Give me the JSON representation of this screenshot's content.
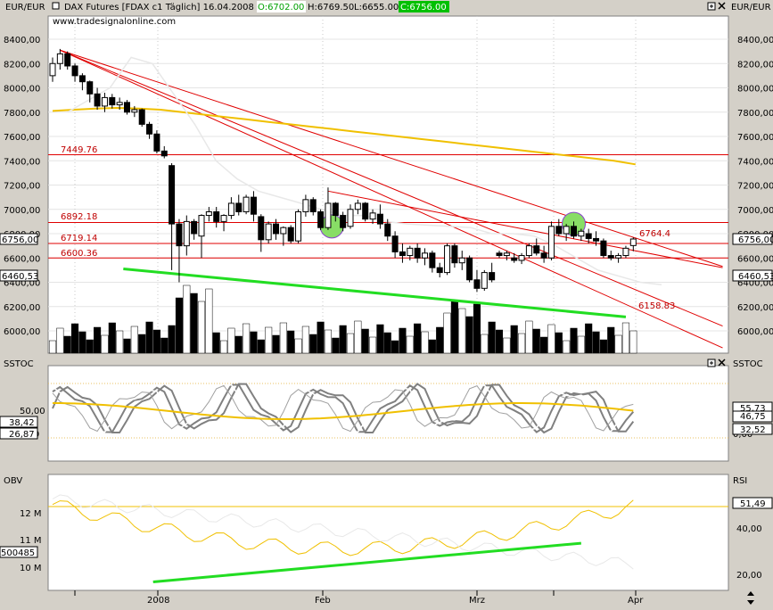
{
  "header": {
    "symbol_left": "EUR/EUR",
    "symbol_right": "EUR/EUR",
    "title": "DAX Futures [FDAX c1  Täglich] 16.04.2008 -",
    "open": "O:6702.00",
    "high": "H:6769.50",
    "low": "L:6655.00",
    "close": "C:6756.00",
    "source": "www.tradesignalonline.com"
  },
  "colors": {
    "background": "#ffffff",
    "frame": "#d4d0c8",
    "trendline": "#e00000",
    "ma_long": "#f0c000",
    "support_line": "#22dd22",
    "volume": "#000000"
  },
  "icons": [
    "square-icon",
    "plus-box-icon",
    "close-icon",
    "up-down-arrow-icon"
  ],
  "main_panel": {
    "y_ticks": [
      "8400,00",
      "8200,00",
      "8000,00",
      "7800,00",
      "7600,00",
      "7400,00",
      "7200,00",
      "7000,00",
      "6800,00",
      "6600,00",
      "6400,00",
      "6200,00",
      "6000,00"
    ],
    "price_badge_left": "6756,00",
    "price_badge_right": "6756,00",
    "volume_badge_left": "6460,53",
    "volume_badge_right": "6460,53",
    "levels": [
      {
        "label": "7449.76",
        "value": 7449.76
      },
      {
        "label": "6892.18",
        "value": 6892.18
      },
      {
        "label": "6719.14",
        "value": 6719.14
      },
      {
        "label": "6600.36",
        "value": 6600.36
      }
    ],
    "annotations": [
      {
        "label": "6764.4",
        "value": 6764.4
      },
      {
        "label": "6158.83",
        "value": 6158.83
      }
    ]
  },
  "sstoc_panel": {
    "title_left": "SSTOC",
    "title_right": "SSTOC",
    "y_ticks": [
      "50,00",
      "0,00"
    ],
    "left_badges": [
      "38,42",
      "26,87"
    ],
    "right_badges": [
      "55,73",
      "46,75",
      "32,52"
    ]
  },
  "obv_panel": {
    "title_left": "OBV",
    "title_right": "RSI",
    "left_ticks": [
      "12 M",
      "11 M",
      "10 M"
    ],
    "left_badge": "500485",
    "right_ticks": [
      "40,00",
      "20,00"
    ],
    "right_badge": "51,49"
  },
  "x_axis": {
    "labels": [
      "2008",
      "Feb",
      "Mrz",
      "Apr"
    ]
  },
  "chart_data": {
    "type": "candlestick",
    "title": "DAX Futures [FDAX c1  Täglich] 16.04.2008",
    "ylabel": "EUR/EUR",
    "ylim": [
      5750,
      8550
    ],
    "x_labels": [
      "2008",
      "Feb",
      "Mrz",
      "Apr"
    ],
    "ohlc": [
      [
        8100,
        8250,
        8050,
        8200
      ],
      [
        8200,
        8320,
        8150,
        8280
      ],
      [
        8280,
        8300,
        8150,
        8180
      ],
      [
        8180,
        8200,
        8050,
        8100
      ],
      [
        8100,
        8120,
        7980,
        8050
      ],
      [
        8050,
        8060,
        7880,
        7950
      ],
      [
        7950,
        8000,
        7820,
        7850
      ],
      [
        7850,
        7960,
        7800,
        7920
      ],
      [
        7920,
        7950,
        7830,
        7860
      ],
      [
        7860,
        7920,
        7820,
        7880
      ],
      [
        7880,
        7900,
        7780,
        7800
      ],
      [
        7800,
        7850,
        7760,
        7820
      ],
      [
        7820,
        7830,
        7680,
        7700
      ],
      [
        7700,
        7720,
        7580,
        7620
      ],
      [
        7620,
        7650,
        7460,
        7480
      ],
      [
        7480,
        7520,
        7420,
        7440
      ],
      [
        7360,
        7380,
        6500,
        6880
      ],
      [
        6880,
        6920,
        6400,
        6700
      ],
      [
        6700,
        6950,
        6620,
        6900
      ],
      [
        6900,
        6920,
        6750,
        6800
      ],
      [
        6780,
        6960,
        6600,
        6950
      ],
      [
        6950,
        7020,
        6900,
        6980
      ],
      [
        6980,
        7020,
        6850,
        6900
      ],
      [
        6900,
        6960,
        6820,
        6950
      ],
      [
        6950,
        7100,
        6920,
        7050
      ],
      [
        7050,
        7120,
        6950,
        6980
      ],
      [
        6980,
        7120,
        6960,
        7100
      ],
      [
        7100,
        7150,
        6900,
        6960
      ],
      [
        6940,
        6960,
        6650,
        6750
      ],
      [
        6750,
        6900,
        6720,
        6880
      ],
      [
        6880,
        6920,
        6750,
        6800
      ],
      [
        6800,
        6860,
        6700,
        6850
      ],
      [
        6850,
        6870,
        6720,
        6740
      ],
      [
        6740,
        7000,
        6720,
        6980
      ],
      [
        6980,
        7120,
        6940,
        7080
      ],
      [
        7080,
        7100,
        6950,
        6980
      ],
      [
        6980,
        7000,
        6830,
        6850
      ],
      [
        6850,
        7180,
        6830,
        7050
      ],
      [
        7050,
        7060,
        6900,
        6950
      ],
      [
        6950,
        6980,
        6820,
        6850
      ],
      [
        6860,
        7040,
        6840,
        7000
      ],
      [
        7000,
        7080,
        6960,
        7050
      ],
      [
        7050,
        7060,
        6900,
        6920
      ],
      [
        6920,
        7000,
        6880,
        6970
      ],
      [
        6960,
        7040,
        6840,
        6880
      ],
      [
        6880,
        6920,
        6740,
        6780
      ],
      [
        6780,
        6820,
        6600,
        6650
      ],
      [
        6650,
        6720,
        6560,
        6620
      ],
      [
        6620,
        6700,
        6580,
        6680
      ],
      [
        6680,
        6720,
        6560,
        6600
      ],
      [
        6600,
        6680,
        6540,
        6640
      ],
      [
        6640,
        6660,
        6480,
        6520
      ],
      [
        6520,
        6560,
        6440,
        6480
      ],
      [
        6480,
        6720,
        6460,
        6700
      ],
      [
        6700,
        6720,
        6520,
        6560
      ],
      [
        6560,
        6660,
        6500,
        6600
      ],
      [
        6600,
        6620,
        6400,
        6420
      ],
      [
        6420,
        6500,
        6320,
        6350
      ],
      [
        6350,
        6500,
        6330,
        6480
      ],
      [
        6480,
        6560,
        6400,
        6420
      ],
      [
        6640,
        6660,
        6600,
        6620
      ],
      [
        6620,
        6660,
        6580,
        6640
      ],
      [
        6600,
        6640,
        6560,
        6580
      ],
      [
        6580,
        6640,
        6550,
        6620
      ],
      [
        6620,
        6720,
        6600,
        6700
      ],
      [
        6700,
        6760,
        6620,
        6640
      ],
      [
        6640,
        6700,
        6560,
        6600
      ],
      [
        6600,
        6900,
        6580,
        6860
      ],
      [
        6860,
        6920,
        6780,
        6800
      ],
      [
        6800,
        6880,
        6740,
        6860
      ],
      [
        6860,
        6900,
        6760,
        6780
      ],
      [
        6780,
        6840,
        6740,
        6820
      ],
      [
        6800,
        6840,
        6720,
        6760
      ],
      [
        6760,
        6820,
        6700,
        6740
      ],
      [
        6740,
        6760,
        6600,
        6620
      ],
      [
        6620,
        6660,
        6580,
        6600
      ],
      [
        6600,
        6640,
        6560,
        6620
      ],
      [
        6620,
        6700,
        6600,
        6680
      ],
      [
        6702,
        6769.5,
        6655,
        6756
      ]
    ],
    "horizontal_levels": [
      7449.76,
      6892.18,
      6719.14,
      6600.36
    ],
    "annotations": [
      6764.4,
      6158.83
    ],
    "last_price": 6756.0,
    "ma_long_value": 6460.53,
    "sstoc_latest": [
      55.73,
      46.75,
      32.52,
      38.42,
      26.87
    ],
    "obv_latest": 500485,
    "rsi_latest": 51.49
  }
}
